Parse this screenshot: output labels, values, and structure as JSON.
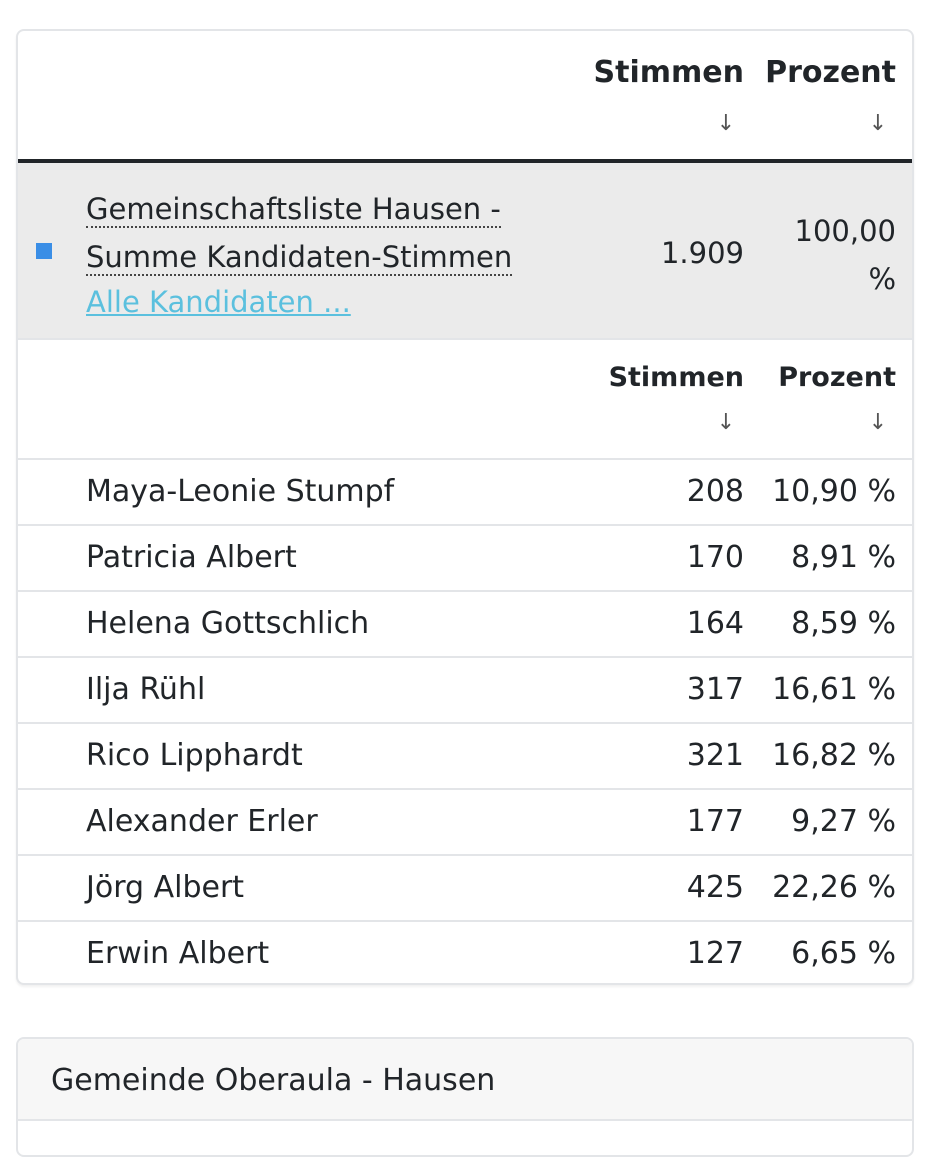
{
  "table": {
    "col_votes": "Stimmen",
    "col_percent": "Prozent",
    "sort_icon": "↓"
  },
  "summary": {
    "name_line1": "Gemeinschaftsliste Hausen -",
    "name_line2": "Summe Kandidaten-Stimmen",
    "link": "Alle Kandidaten ...",
    "votes": "1.909",
    "percent_line1": "100,00",
    "percent_line2": "%",
    "legend_color": "#3a8ee6"
  },
  "subtable": {
    "col_votes": "Stimmen",
    "col_percent": "Prozent"
  },
  "candidates": [
    {
      "name": "Maya-Leonie Stumpf",
      "votes": "208",
      "percent": "10,90 %"
    },
    {
      "name": "Patricia Albert",
      "votes": "170",
      "percent": "8,91 %"
    },
    {
      "name": "Helena Gottschlich",
      "votes": "164",
      "percent": "8,59 %"
    },
    {
      "name": "Ilja Rühl",
      "votes": "317",
      "percent": "16,61 %"
    },
    {
      "name": "Rico Lipphardt",
      "votes": "321",
      "percent": "16,82 %"
    },
    {
      "name": "Alexander Erler",
      "votes": "177",
      "percent": "9,27 %"
    },
    {
      "name": "Jörg Albert",
      "votes": "425",
      "percent": "22,26 %"
    },
    {
      "name": "Erwin Albert",
      "votes": "127",
      "percent": "6,65 %"
    }
  ],
  "next_card": {
    "title": "Gemeinde Oberaula - Hausen"
  },
  "colors": {
    "link": "#5bc0de",
    "summary_bg": "#ebebeb",
    "border": "#e3e5e8"
  }
}
